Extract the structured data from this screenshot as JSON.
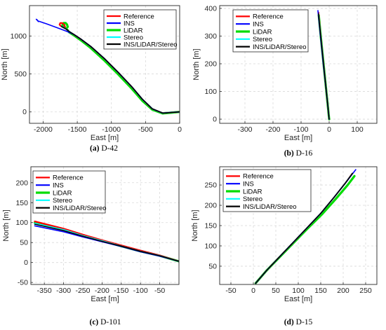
{
  "chart_data": [
    {
      "type": "line",
      "caption": {
        "label": "(a)",
        "text": "D-42"
      },
      "xlabel": "East [m]",
      "ylabel": "North [m]",
      "xlim": [
        -2200,
        0
      ],
      "ylim": [
        -150,
        1400
      ],
      "xticks": [
        "-2000",
        "-1500",
        "-1000",
        "-500",
        "0"
      ],
      "yticks": [
        "0",
        "500",
        "1000"
      ],
      "xtick_values": [
        -2000,
        -1500,
        -1000,
        -500,
        0
      ],
      "ytick_values": [
        0,
        500,
        1000
      ],
      "grid": true,
      "legend": "top-right",
      "series": [
        {
          "name": "Reference",
          "color": "#ff0000",
          "x": [
            0,
            -100,
            -250,
            -400,
            -550,
            -700,
            -900,
            -1100,
            -1300,
            -1450,
            -1550,
            -1620,
            -1660,
            -1700,
            -1740,
            -1760,
            -1750,
            -1720,
            -1690,
            -1680
          ],
          "y": [
            0,
            -5,
            -15,
            40,
            170,
            330,
            520,
            700,
            860,
            960,
            1020,
            1060,
            1090,
            1110,
            1130,
            1150,
            1170,
            1170,
            1150,
            1120
          ]
        },
        {
          "name": "INS",
          "color": "#0000ff",
          "x": [
            0,
            -100,
            -250,
            -400,
            -550,
            -700,
            -900,
            -1100,
            -1300,
            -1450,
            -1550,
            -1650,
            -1800,
            -1950,
            -2080,
            -2100,
            -2090,
            -2070
          ],
          "y": [
            0,
            -5,
            -15,
            40,
            170,
            330,
            520,
            700,
            860,
            960,
            1020,
            1060,
            1110,
            1160,
            1200,
            1220,
            1215,
            1190
          ]
        },
        {
          "name": "LiDAR",
          "color": "#00dd00",
          "x": [
            0,
            -100,
            -250,
            -400,
            -550,
            -700,
            -900,
            -1100,
            -1300,
            -1450,
            -1550,
            -1620,
            -1640,
            -1660,
            -1700,
            -1720,
            -1700,
            -1670,
            -1650,
            -1640
          ],
          "y": [
            0,
            -8,
            -20,
            30,
            150,
            305,
            495,
            675,
            840,
            945,
            1010,
            1050,
            1075,
            1100,
            1120,
            1140,
            1170,
            1170,
            1150,
            1120
          ]
        },
        {
          "name": "Stereo",
          "color": "#00ffff",
          "x": [
            0,
            -100,
            -250,
            -400,
            -550,
            -700,
            -900,
            -1100,
            -1300,
            -1450,
            -1550,
            -1620,
            -1660,
            -1700,
            -1730
          ],
          "y": [
            0,
            -5,
            -15,
            40,
            170,
            330,
            520,
            700,
            860,
            960,
            1020,
            1060,
            1090,
            1110,
            1125
          ]
        },
        {
          "name": "INS/LiDAR/Stereo",
          "color": "#000000",
          "x": [
            0,
            -100,
            -250,
            -400,
            -550,
            -700,
            -900,
            -1100,
            -1300,
            -1450,
            -1550,
            -1620,
            -1660,
            -1700,
            -1730
          ],
          "y": [
            0,
            -5,
            -15,
            40,
            170,
            330,
            520,
            700,
            860,
            960,
            1020,
            1060,
            1090,
            1110,
            1125
          ]
        }
      ]
    },
    {
      "type": "line",
      "caption": {
        "label": "(b)",
        "text": "D-16"
      },
      "xlabel": "East [m]",
      "ylabel": "North [m]",
      "xlim": [
        -390,
        170
      ],
      "ylim": [
        -15,
        410
      ],
      "xticks": [
        "-300",
        "-200",
        "-100",
        "0",
        "100"
      ],
      "yticks": [
        "0",
        "100",
        "200",
        "300",
        "400"
      ],
      "xtick_values": [
        -300,
        -200,
        -100,
        0,
        100
      ],
      "ytick_values": [
        0,
        100,
        200,
        300,
        400
      ],
      "grid": true,
      "legend": "top-right",
      "series": [
        {
          "name": "Reference",
          "color": "#ff0000",
          "x": [
            0,
            -10,
            -20,
            -30,
            -38
          ],
          "y": [
            0,
            100,
            200,
            300,
            385
          ]
        },
        {
          "name": "INS",
          "color": "#0000ff",
          "x": [
            0,
            -10,
            -21,
            -31,
            -40
          ],
          "y": [
            0,
            100,
            200,
            300,
            392
          ]
        },
        {
          "name": "LiDAR",
          "color": "#00dd00",
          "x": [
            0,
            -10,
            -20,
            -30,
            -37
          ],
          "y": [
            0,
            100,
            200,
            300,
            375
          ]
        },
        {
          "name": "Stereo",
          "color": "#00ffff",
          "x": [
            0,
            -10,
            -20,
            -30,
            -38
          ],
          "y": [
            0,
            100,
            200,
            300,
            380
          ]
        },
        {
          "name": "INS/LiDAR/Stereo",
          "color": "#000000",
          "x": [
            0,
            -10,
            -20,
            -30,
            -38
          ],
          "y": [
            0,
            100,
            200,
            300,
            380
          ]
        }
      ]
    },
    {
      "type": "line",
      "caption": {
        "label": "(c)",
        "text": "D-101"
      },
      "xlabel": "East [m]",
      "ylabel": "North [m]",
      "xlim": [
        -385,
        0
      ],
      "ylim": [
        -55,
        240
      ],
      "xticks": [
        "-350",
        "-300",
        "-250",
        "-200",
        "-150",
        "-100",
        "-50"
      ],
      "yticks": [
        "-50",
        "0",
        "50",
        "100",
        "150",
        "200"
      ],
      "xtick_values": [
        -350,
        -300,
        -250,
        -200,
        -150,
        -100,
        -50
      ],
      "ytick_values": [
        -50,
        0,
        50,
        100,
        150,
        200
      ],
      "grid": true,
      "legend": "top-left",
      "series": [
        {
          "name": "Reference",
          "color": "#ff0000",
          "x": [
            -375,
            -300,
            -250,
            -200,
            -150,
            -100,
            -50,
            0
          ],
          "y": [
            103,
            85,
            70,
            56,
            43,
            30,
            18,
            3
          ]
        },
        {
          "name": "INS",
          "color": "#0000ff",
          "x": [
            -375,
            -300,
            -250,
            -200,
            -150,
            -100,
            -50,
            0
          ],
          "y": [
            92,
            77,
            64,
            52,
            40,
            27,
            16,
            3
          ]
        },
        {
          "name": "LiDAR",
          "color": "#00dd00",
          "x": [
            -375,
            -300,
            -250,
            -200,
            -150,
            -100,
            -50,
            0
          ],
          "y": [
            100,
            83,
            68,
            54,
            41,
            28,
            17,
            3
          ]
        },
        {
          "name": "Stereo",
          "color": "#00ffff",
          "x": [
            -375,
            -300,
            -250,
            -200,
            -150,
            -100,
            -50,
            0
          ],
          "y": [
            98,
            82,
            67,
            54,
            41,
            28,
            17,
            3
          ]
        },
        {
          "name": "INS/LiDAR/Stereo",
          "color": "#000000",
          "x": [
            -375,
            -300,
            -250,
            -200,
            -150,
            -100,
            -50,
            0
          ],
          "y": [
            96,
            80,
            66,
            53,
            41,
            28,
            17,
            3
          ]
        }
      ]
    },
    {
      "type": "line",
      "caption": {
        "label": "(d)",
        "text": "D-15"
      },
      "xlabel": "East [m]",
      "ylabel": "North [m]",
      "xlim": [
        -75,
        275
      ],
      "ylim": [
        5,
        295
      ],
      "xticks": [
        "-50",
        "0",
        "50",
        "100",
        "150",
        "200",
        "250"
      ],
      "yticks": [
        "50",
        "100",
        "150",
        "200",
        "250"
      ],
      "xtick_values": [
        -50,
        0,
        50,
        100,
        150,
        200,
        250
      ],
      "ytick_values": [
        50,
        100,
        150,
        200,
        250
      ],
      "grid": true,
      "legend": "top-left",
      "series": [
        {
          "name": "Reference",
          "color": "#ff0000",
          "x": [
            5,
            30,
            60,
            90,
            120,
            150,
            180,
            205,
            220
          ],
          "y": [
            8,
            40,
            75,
            110,
            145,
            180,
            220,
            255,
            278
          ]
        },
        {
          "name": "INS",
          "color": "#0000ff",
          "x": [
            5,
            30,
            60,
            90,
            120,
            150,
            180,
            210,
            228
          ],
          "y": [
            8,
            40,
            75,
            110,
            145,
            180,
            220,
            262,
            288
          ]
        },
        {
          "name": "LiDAR",
          "color": "#00dd00",
          "x": [
            5,
            30,
            60,
            90,
            120,
            152,
            183,
            210,
            225
          ],
          "y": [
            8,
            40,
            74,
            108,
            142,
            177,
            215,
            250,
            272
          ]
        },
        {
          "name": "Stereo",
          "color": "#00ffff",
          "x": [
            5,
            30,
            60,
            90,
            120,
            150,
            180,
            205,
            221
          ],
          "y": [
            8,
            40,
            75,
            110,
            145,
            180,
            220,
            255,
            279
          ]
        },
        {
          "name": "INS/LiDAR/Stereo",
          "color": "#000000",
          "x": [
            5,
            30,
            60,
            90,
            120,
            150,
            180,
            205,
            221
          ],
          "y": [
            8,
            40,
            75,
            110,
            145,
            180,
            220,
            255,
            279
          ]
        }
      ]
    }
  ]
}
